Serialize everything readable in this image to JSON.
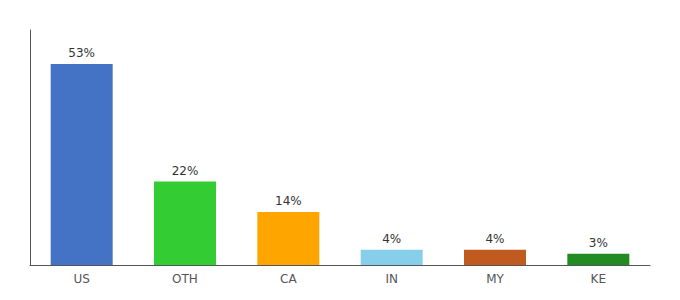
{
  "chart_data": {
    "type": "bar",
    "categories": [
      "US",
      "OTH",
      "CA",
      "IN",
      "MY",
      "KE"
    ],
    "values": [
      53,
      22,
      14,
      4,
      4,
      3
    ],
    "value_labels": [
      "53%",
      "22%",
      "14%",
      "4%",
      "4%",
      "3%"
    ],
    "colors": [
      "#4472C4",
      "#33CC33",
      "#FFA500",
      "#87CEEB",
      "#C05A1F",
      "#228B22"
    ],
    "ylim": [
      0,
      62
    ],
    "data_labels": true,
    "tick_labels": "x",
    "grid": false
  }
}
